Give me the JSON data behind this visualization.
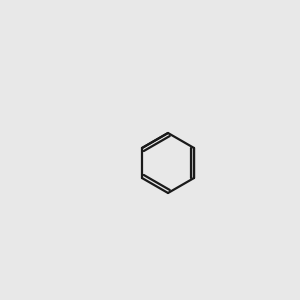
{
  "bg_color": "#e8e8e8",
  "bond_color": "#1a1a1a",
  "N_color": "#2020cc",
  "O_color": "#cc1010",
  "H_color": "#4a9090",
  "line_width": 1.6,
  "font_size": 9.5
}
